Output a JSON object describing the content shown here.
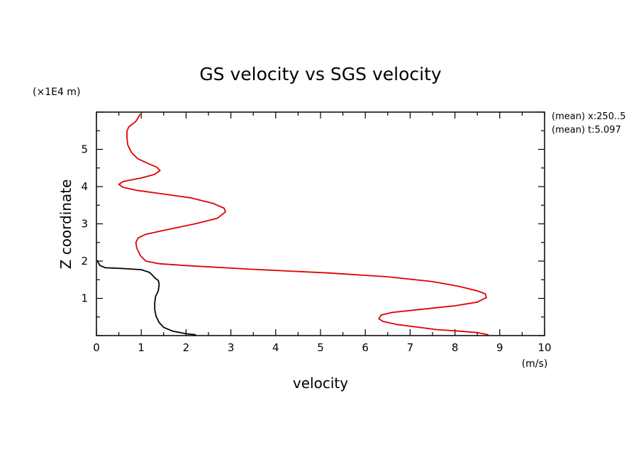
{
  "chart_data": {
    "type": "line",
    "title": "GS velocity vs SGS velocity",
    "xlabel": "velocity",
    "ylabel": "Z coordinate",
    "x_unit": "(m/s)",
    "y_unit": "(×1E4 m)",
    "xlim": [
      0,
      10
    ],
    "ylim": [
      0,
      6
    ],
    "x_ticks": [
      "0",
      "1",
      "2",
      "3",
      "4",
      "5",
      "6",
      "7",
      "8",
      "9",
      "10"
    ],
    "y_ticks": [
      "1",
      "2",
      "3",
      "4",
      "5"
    ],
    "grid": false,
    "annotations": [
      "(mean) x:250..5",
      "(mean) t:5.097"
    ],
    "series": [
      {
        "color": "#e00000",
        "points": [
          [
            8.75,
            0.02
          ],
          [
            8.5,
            0.08
          ],
          [
            8.1,
            0.12
          ],
          [
            7.6,
            0.16
          ],
          [
            7.2,
            0.22
          ],
          [
            6.7,
            0.3
          ],
          [
            6.4,
            0.38
          ],
          [
            6.3,
            0.45
          ],
          [
            6.35,
            0.55
          ],
          [
            6.6,
            0.62
          ],
          [
            7.2,
            0.7
          ],
          [
            8.0,
            0.8
          ],
          [
            8.5,
            0.9
          ],
          [
            8.7,
            1.02
          ],
          [
            8.68,
            1.12
          ],
          [
            8.5,
            1.2
          ],
          [
            8.1,
            1.32
          ],
          [
            7.5,
            1.45
          ],
          [
            6.5,
            1.58
          ],
          [
            5.2,
            1.68
          ],
          [
            3.5,
            1.78
          ],
          [
            2.0,
            1.88
          ],
          [
            1.4,
            1.93
          ],
          [
            1.1,
            2.0
          ],
          [
            0.98,
            2.15
          ],
          [
            0.9,
            2.35
          ],
          [
            0.88,
            2.5
          ],
          [
            0.93,
            2.62
          ],
          [
            1.1,
            2.72
          ],
          [
            1.6,
            2.85
          ],
          [
            2.2,
            3.0
          ],
          [
            2.7,
            3.15
          ],
          [
            2.88,
            3.32
          ],
          [
            2.85,
            3.42
          ],
          [
            2.6,
            3.55
          ],
          [
            2.1,
            3.7
          ],
          [
            1.5,
            3.8
          ],
          [
            0.9,
            3.9
          ],
          [
            0.6,
            3.98
          ],
          [
            0.5,
            4.06
          ],
          [
            0.6,
            4.14
          ],
          [
            1.0,
            4.23
          ],
          [
            1.3,
            4.33
          ],
          [
            1.42,
            4.43
          ],
          [
            1.35,
            4.52
          ],
          [
            1.15,
            4.62
          ],
          [
            0.92,
            4.75
          ],
          [
            0.78,
            4.92
          ],
          [
            0.7,
            5.12
          ],
          [
            0.68,
            5.32
          ],
          [
            0.68,
            5.48
          ],
          [
            0.72,
            5.6
          ],
          [
            0.88,
            5.75
          ],
          [
            0.98,
            5.95
          ]
        ]
      },
      {
        "color": "#000000",
        "points": [
          [
            2.22,
            0.02
          ],
          [
            2.0,
            0.05
          ],
          [
            1.7,
            0.12
          ],
          [
            1.5,
            0.22
          ],
          [
            1.4,
            0.35
          ],
          [
            1.33,
            0.52
          ],
          [
            1.3,
            0.7
          ],
          [
            1.3,
            0.88
          ],
          [
            1.32,
            1.05
          ],
          [
            1.38,
            1.2
          ],
          [
            1.4,
            1.38
          ],
          [
            1.38,
            1.48
          ],
          [
            1.3,
            1.55
          ],
          [
            1.25,
            1.62
          ],
          [
            1.18,
            1.7
          ],
          [
            1.0,
            1.77
          ],
          [
            0.6,
            1.8
          ],
          [
            0.2,
            1.82
          ],
          [
            0.08,
            1.88
          ],
          [
            0.04,
            1.96
          ],
          [
            0.02,
            2.02
          ]
        ]
      }
    ]
  }
}
